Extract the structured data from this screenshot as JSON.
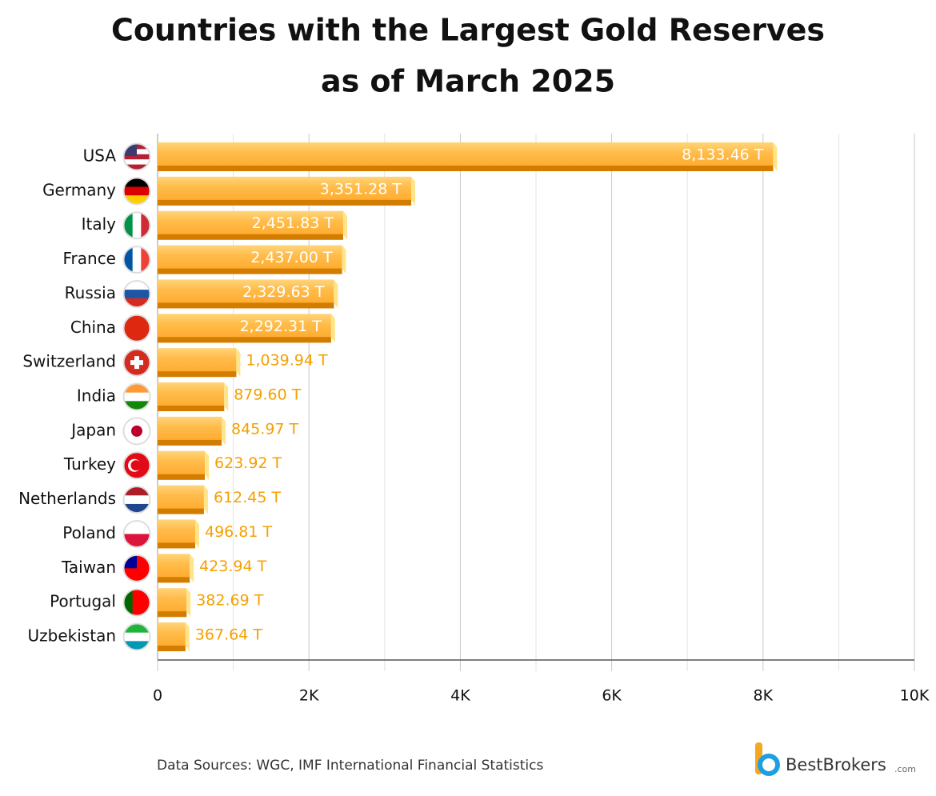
{
  "chart_data": {
    "type": "bar",
    "orientation": "horizontal",
    "title": "Countries with the Largest Gold Reserves",
    "subtitle": "as of March 2025",
    "categories": [
      "USA",
      "Germany",
      "Italy",
      "France",
      "Russia",
      "China",
      "Switzerland",
      "India",
      "Japan",
      "Turkey",
      "Netherlands",
      "Poland",
      "Taiwan",
      "Portugal",
      "Uzbekistan"
    ],
    "values": [
      8133.46,
      3351.28,
      2451.83,
      2437.0,
      2329.63,
      2292.31,
      1039.94,
      879.6,
      845.97,
      623.92,
      612.45,
      496.81,
      423.94,
      382.69,
      367.64
    ],
    "value_labels": [
      "8,133.46 T",
      "3,351.28 T",
      "2,451.83 T",
      "2,437.00 T",
      "2,329.63 T",
      "2,292.31 T",
      "1,039.94 T",
      "879.60 T",
      "845.97 T",
      "623.92 T",
      "612.45 T",
      "496.81 T",
      "423.94 T",
      "382.69 T",
      "367.64 T"
    ],
    "color": "#ffb43c",
    "xlim": [
      0,
      10000
    ],
    "xticks": [
      0,
      {
        "value": 2000,
        "label": "2K"
      },
      {
        "value": 4000,
        "label": "4K"
      },
      {
        "value": 6000,
        "label": "6K"
      },
      {
        "value": 8000,
        "label": "8K"
      },
      {
        "value": 10000,
        "label": "10K"
      }
    ],
    "minor_gridlines": [
      1000,
      3000,
      5000,
      7000,
      9000
    ],
    "grid": true,
    "source": "Data Sources: WGC, IMF International Financial Statistics",
    "logo": {
      "name": "BestBrokers",
      "suffix": ".com"
    }
  }
}
